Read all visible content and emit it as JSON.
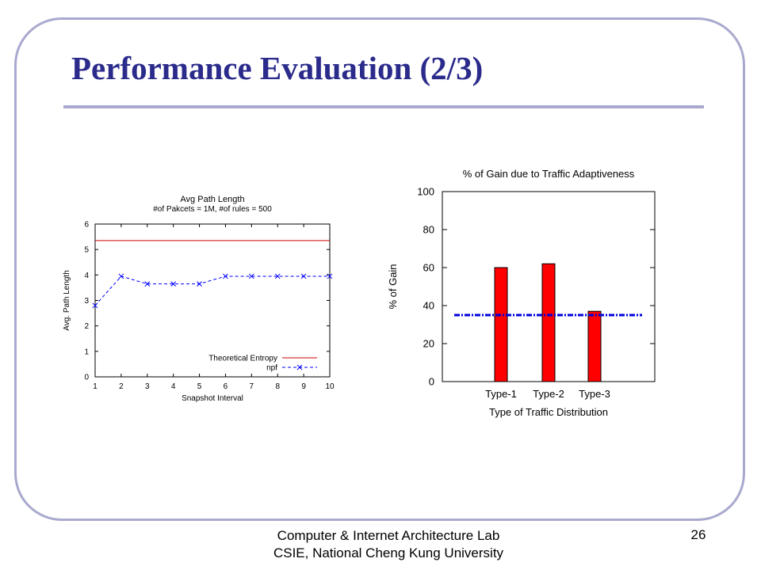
{
  "slide": {
    "title": "Performance Evaluation (2/3)",
    "footer_line1": "Computer & Internet Architecture Lab",
    "footer_line2": "CSIE, National Cheng Kung University",
    "page_number": "26"
  },
  "colors": {
    "title": "#2b2b8c",
    "frame": "#a9a9cf",
    "entropy_line": "#cc0000",
    "npf_line": "#0000ff",
    "bar_fill": "#ff0000",
    "baseline": "#0000dd"
  },
  "chart_data": [
    {
      "type": "line",
      "title": "Avg Path Length",
      "subtitle": "#of Pakcets = 1M, #of rules = 500",
      "xlabel": "Snapshot Interval",
      "ylabel": "Avg. Path Length",
      "x": [
        1,
        2,
        3,
        4,
        5,
        6,
        7,
        8,
        9,
        10
      ],
      "xlim": [
        1,
        10
      ],
      "ylim": [
        0,
        6
      ],
      "yticks": [
        0,
        1,
        2,
        3,
        4,
        5,
        6
      ],
      "legend_position": "bottom-right",
      "series": [
        {
          "name": "Theoretical Entropy",
          "style": "solid",
          "color": "#cc0000",
          "values": [
            5.35,
            5.35,
            5.35,
            5.35,
            5.35,
            5.35,
            5.35,
            5.35,
            5.35,
            5.35
          ]
        },
        {
          "name": "npf",
          "style": "dashed",
          "marker": "x",
          "color": "#0000ff",
          "values": [
            2.8,
            3.95,
            3.65,
            3.65,
            3.65,
            3.95,
            3.95,
            3.95,
            3.95,
            3.95
          ]
        }
      ]
    },
    {
      "type": "bar",
      "title": "% of Gain due to Traffic Adaptiveness",
      "xlabel": "Type of Traffic Distribution",
      "ylabel": "% of Gain",
      "categories": [
        "Type-1",
        "Type-2",
        "Type-3"
      ],
      "values": [
        60,
        62,
        37
      ],
      "ylim": [
        0,
        100
      ],
      "yticks": [
        0,
        20,
        40,
        60,
        80,
        100
      ],
      "reference_line": 35
    }
  ]
}
